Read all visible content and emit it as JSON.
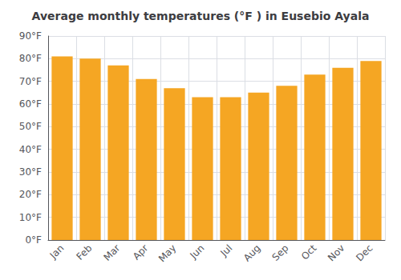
{
  "chart_data": {
    "type": "bar",
    "title": "Average monthly temperatures (°F ) in Eusebio Ayala",
    "categories": [
      "Jan",
      "Feb",
      "Mar",
      "Apr",
      "May",
      "Jun",
      "Jul",
      "Aug",
      "Sep",
      "Oct",
      "Nov",
      "Dec"
    ],
    "values": [
      81,
      80,
      77,
      71,
      67,
      63,
      63,
      65,
      68,
      73,
      76,
      79
    ],
    "color": "#F5A623",
    "ylim": [
      0,
      90
    ],
    "yticks": [
      {
        "value": 0,
        "label": "0°F"
      },
      {
        "value": 10,
        "label": "10°F"
      },
      {
        "value": 20,
        "label": "20°F"
      },
      {
        "value": 30,
        "label": "30°F"
      },
      {
        "value": 40,
        "label": "40°F"
      },
      {
        "value": 50,
        "label": "50°F"
      },
      {
        "value": 60,
        "label": "60°F"
      },
      {
        "value": 70,
        "label": "70°F"
      },
      {
        "value": 80,
        "label": "80°F"
      },
      {
        "value": 90,
        "label": "90°F"
      }
    ],
    "grid": true
  }
}
